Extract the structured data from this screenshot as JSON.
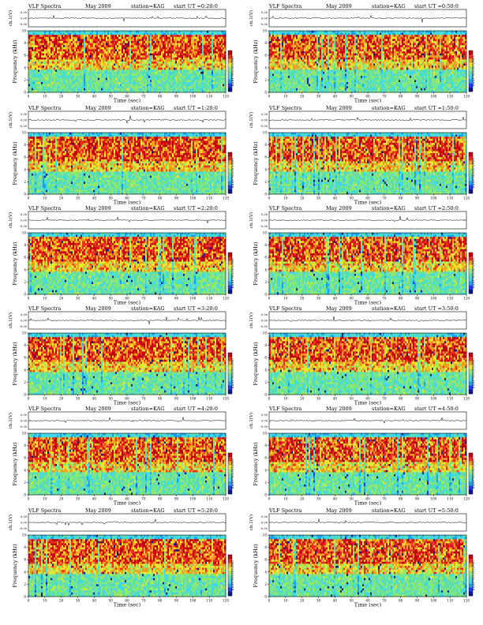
{
  "colors": {
    "colormap": [
      "#0a1a8c",
      "#1f3fe0",
      "#1aa0f0",
      "#3fd8e8",
      "#5fe0a8",
      "#8fe870",
      "#e8e830",
      "#f0a020",
      "#e83020",
      "#c00010"
    ],
    "waveform": "#000000",
    "background": "#ffffff"
  },
  "chart_data": [
    {
      "type": "heatmap",
      "title": "VLF Spectra",
      "date": "May 2009",
      "station": "station=KAG",
      "start": "start  UT =0:20:0",
      "top_ylabel": "ch.1(V)",
      "top_yticks": [
        "0.30",
        "0.00",
        "-0.30"
      ],
      "ylabel": "Frequency (kHz)",
      "yticks": [
        "10",
        "8",
        "6",
        "4",
        "2",
        "0"
      ],
      "xlabel": "Time (sec)",
      "xticks": [
        "0",
        "10",
        "20",
        "30",
        "40",
        "50",
        "60",
        "70",
        "80",
        "90",
        "100",
        "110",
        "120"
      ],
      "xlim": [
        0,
        120
      ],
      "ylim": [
        0,
        10
      ],
      "colorbar_label": "log(PSD)(V/√Hz)",
      "colorbar_ticks": [
        "",
        "",
        ""
      ]
    },
    {
      "type": "heatmap",
      "title": "VLF Spectra",
      "date": "May 2009",
      "station": "station=KAG",
      "start": "start  UT =0:50:0",
      "top_ylabel": "ch.1(V)",
      "top_yticks": [
        "0.30",
        "0.00",
        "-0.30"
      ],
      "ylabel": "Frequency (kHz)",
      "yticks": [
        "10",
        "8",
        "6",
        "4",
        "2",
        "0"
      ],
      "xlabel": "Time (sec)",
      "xticks": [
        "0",
        "10",
        "20",
        "30",
        "40",
        "50",
        "60",
        "70",
        "80",
        "90",
        "100",
        "110",
        "120"
      ],
      "xlim": [
        0,
        120
      ],
      "ylim": [
        0,
        10
      ],
      "colorbar_label": "log(PSD)(V/√Hz)",
      "colorbar_ticks": [
        "",
        "",
        ""
      ]
    },
    {
      "type": "heatmap",
      "title": "VLF Spectra",
      "date": "May 2009",
      "station": "station=KAG",
      "start": "start  UT =1:20:0",
      "top_ylabel": "ch.1(V)",
      "top_yticks": [
        "0.30",
        "0.00",
        "-0.30"
      ],
      "ylabel": "Frequency (kHz)",
      "yticks": [
        "10",
        "8",
        "6",
        "4",
        "2",
        "0"
      ],
      "xlabel": "Time (sec)",
      "xticks": [
        "0",
        "10",
        "20",
        "30",
        "40",
        "50",
        "60",
        "70",
        "80",
        "90",
        "100",
        "110",
        "120"
      ],
      "xlim": [
        0,
        120
      ],
      "ylim": [
        0,
        10
      ],
      "colorbar_label": "log(PSD)(V/√Hz)",
      "colorbar_ticks": [
        "",
        "",
        ""
      ]
    },
    {
      "type": "heatmap",
      "title": "VLF Spectra",
      "date": "May 2009",
      "station": "station=KAG",
      "start": "start  UT =1:50:0",
      "top_ylabel": "ch.1(V)",
      "top_yticks": [
        "0.30",
        "0.00",
        "-0.30"
      ],
      "ylabel": "Frequency (kHz)",
      "yticks": [
        "10",
        "8",
        "6",
        "4",
        "2",
        "0"
      ],
      "xlabel": "Time (sec)",
      "xticks": [
        "0",
        "10",
        "20",
        "30",
        "40",
        "50",
        "60",
        "70",
        "80",
        "90",
        "100",
        "110",
        "120"
      ],
      "xlim": [
        0,
        120
      ],
      "ylim": [
        0,
        10
      ],
      "colorbar_label": "log(PSD)(V/√Hz)",
      "colorbar_ticks": [
        "",
        "",
        ""
      ]
    },
    {
      "type": "heatmap",
      "title": "VLF Spectra",
      "date": "May 2009",
      "station": "station=KAG",
      "start": "start  UT =2:20:0",
      "top_ylabel": "ch.1(V)",
      "top_yticks": [
        "0.30",
        "0.00",
        "-0.30"
      ],
      "ylabel": "Frequency (kHz)",
      "yticks": [
        "10",
        "8",
        "6",
        "4",
        "2",
        "0"
      ],
      "xlabel": "Time (sec)",
      "xticks": [
        "0",
        "10",
        "20",
        "30",
        "40",
        "50",
        "60",
        "70",
        "80",
        "90",
        "100",
        "110",
        "120"
      ],
      "xlim": [
        0,
        120
      ],
      "ylim": [
        0,
        10
      ],
      "colorbar_label": "log(PSD)(V/√Hz)",
      "colorbar_ticks": [
        "",
        "",
        ""
      ]
    },
    {
      "type": "heatmap",
      "title": "VLF Spectra",
      "date": "May 2009",
      "station": "station=KAG",
      "start": "start  UT =2:50:0",
      "top_ylabel": "ch.1(V)",
      "top_yticks": [
        "0.30",
        "0.00",
        "-0.30"
      ],
      "ylabel": "Frequency (kHz)",
      "yticks": [
        "10",
        "8",
        "6",
        "4",
        "2",
        "0"
      ],
      "xlabel": "Time (sec)",
      "xticks": [
        "0",
        "10",
        "20",
        "30",
        "40",
        "50",
        "60",
        "70",
        "80",
        "90",
        "100",
        "110",
        "120"
      ],
      "xlim": [
        0,
        120
      ],
      "ylim": [
        0,
        10
      ],
      "colorbar_label": "log(PSD)(V/√Hz)",
      "colorbar_ticks": [
        "",
        "",
        ""
      ]
    },
    {
      "type": "heatmap",
      "title": "VLF Spectra",
      "date": "May 2009",
      "station": "station=KAG",
      "start": "start  UT =3:20:0",
      "top_ylabel": "ch.1(V)",
      "top_yticks": [
        "0.30",
        "0.00",
        "-0.30"
      ],
      "ylabel": "Frequency (kHz)",
      "yticks": [
        "10",
        "8",
        "6",
        "4",
        "2",
        "0"
      ],
      "xlabel": "Time (sec)",
      "xticks": [
        "0",
        "10",
        "20",
        "30",
        "40",
        "50",
        "60",
        "70",
        "80",
        "90",
        "100",
        "110",
        "120"
      ],
      "xlim": [
        0,
        120
      ],
      "ylim": [
        0,
        10
      ],
      "colorbar_label": "log(PSD)(V/√Hz)",
      "colorbar_ticks": [
        "",
        "",
        ""
      ]
    },
    {
      "type": "heatmap",
      "title": "VLF Spectra",
      "date": "May 2009",
      "station": "station=KAG",
      "start": "start  UT =3:50:0",
      "top_ylabel": "ch.1(V)",
      "top_yticks": [
        "0.30",
        "0.00",
        "-0.30"
      ],
      "ylabel": "Frequency (kHz)",
      "yticks": [
        "10",
        "8",
        "6",
        "4",
        "2",
        "0"
      ],
      "xlabel": "Time (sec)",
      "xticks": [
        "0",
        "10",
        "20",
        "30",
        "40",
        "50",
        "60",
        "70",
        "80",
        "90",
        "100",
        "110",
        "120"
      ],
      "xlim": [
        0,
        120
      ],
      "ylim": [
        0,
        10
      ],
      "colorbar_label": "log(PSD)(V/√Hz)",
      "colorbar_ticks": [
        "",
        "",
        ""
      ]
    },
    {
      "type": "heatmap",
      "title": "VLF Spectra",
      "date": "May 2009",
      "station": "station=KAG",
      "start": "start  UT =4:20:0",
      "top_ylabel": "ch.1(V)",
      "top_yticks": [
        "0.30",
        "0.00",
        "-0.30"
      ],
      "ylabel": "Frequency (kHz)",
      "yticks": [
        "10",
        "8",
        "6",
        "4",
        "2",
        "0"
      ],
      "xlabel": "Time (sec)",
      "xticks": [
        "0",
        "10",
        "20",
        "30",
        "40",
        "50",
        "60",
        "70",
        "80",
        "90",
        "100",
        "110",
        "120"
      ],
      "xlim": [
        0,
        120
      ],
      "ylim": [
        0,
        10
      ],
      "colorbar_label": "log(PSD)(V/√Hz)",
      "colorbar_ticks": [
        "",
        "",
        ""
      ]
    },
    {
      "type": "heatmap",
      "title": "VLF Spectra",
      "date": "May 2009",
      "station": "station=KAG",
      "start": "start  UT =4:50:0",
      "top_ylabel": "ch.1(V)",
      "top_yticks": [
        "0.30",
        "0.00",
        "-0.30"
      ],
      "ylabel": "Frequency (kHz)",
      "yticks": [
        "10",
        "8",
        "6",
        "4",
        "2",
        "0"
      ],
      "xlabel": "Time (sec)",
      "xticks": [
        "0",
        "10",
        "20",
        "30",
        "40",
        "50",
        "60",
        "70",
        "80",
        "90",
        "100",
        "110",
        "120"
      ],
      "xlim": [
        0,
        120
      ],
      "ylim": [
        0,
        10
      ],
      "colorbar_label": "log(PSD)(V/√Hz)",
      "colorbar_ticks": [
        "",
        "",
        ""
      ]
    },
    {
      "type": "heatmap",
      "title": "VLF Spectra",
      "date": "May 2009",
      "station": "station=KAG",
      "start": "start  UT =5:20:0",
      "top_ylabel": "ch.1(V)",
      "top_yticks": [
        "0.30",
        "0.00",
        "-0.30"
      ],
      "ylabel": "Frequency (kHz)",
      "yticks": [
        "10",
        "8",
        "6",
        "4",
        "2",
        "0"
      ],
      "xlabel": "Time (sec)",
      "xticks": [
        "0",
        "10",
        "20",
        "30",
        "40",
        "50",
        "60",
        "70",
        "80",
        "90",
        "100",
        "110",
        "120"
      ],
      "xlim": [
        0,
        120
      ],
      "ylim": [
        0,
        10
      ],
      "colorbar_label": "log(PSD)(V/√Hz)",
      "colorbar_ticks": [
        "",
        "",
        ""
      ]
    },
    {
      "type": "heatmap",
      "title": "VLF Spectra",
      "date": "May 2009",
      "station": "station=KAG",
      "start": "start  UT =5:50:0",
      "top_ylabel": "ch.1(V)",
      "top_yticks": [
        "0.30",
        "0.00",
        "-0.30"
      ],
      "ylabel": "Frequency (kHz)",
      "yticks": [
        "10",
        "8",
        "6",
        "4",
        "2",
        "0"
      ],
      "xlabel": "Time (sec)",
      "xticks": [
        "0",
        "10",
        "20",
        "30",
        "40",
        "50",
        "60",
        "70",
        "80",
        "90",
        "100",
        "110",
        "120"
      ],
      "xlim": [
        0,
        120
      ],
      "ylim": [
        0,
        10
      ],
      "colorbar_label": "log(PSD)(V/√Hz)",
      "colorbar_ticks": [
        "",
        "",
        ""
      ]
    }
  ]
}
